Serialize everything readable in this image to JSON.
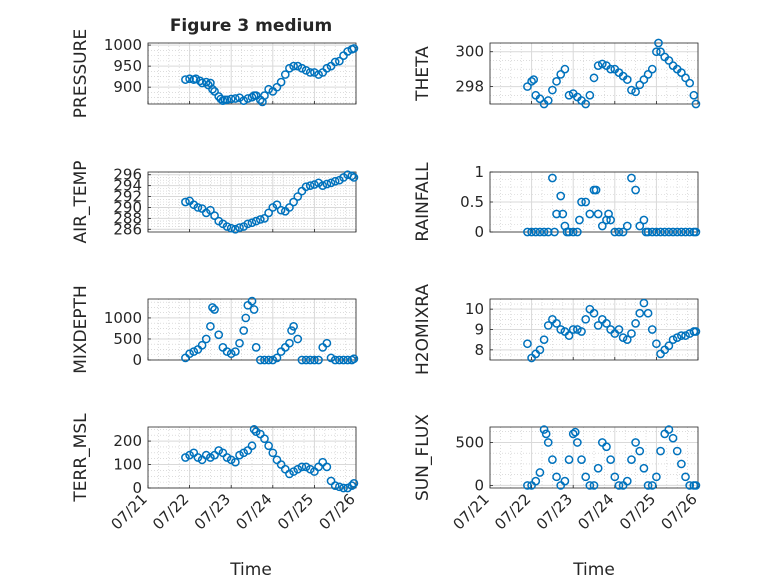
{
  "title": "Figure 3 medium",
  "xlabel": "Time",
  "colors": {
    "marker": "#0072bd",
    "axis": "#262626",
    "grid": "#d9d9d9"
  },
  "chart_data": [
    {
      "type": "scatter",
      "panel": "left-row-1",
      "title": "Figure 3 medium",
      "ylabel": "PRESSURE",
      "ylim": [
        860,
        1005
      ],
      "yticks": [
        900,
        950,
        1000
      ],
      "xlim": [
        "07/21",
        "07/26"
      ],
      "xticks": [
        "07/21",
        "07/22",
        "07/23",
        "07/24",
        "07/25",
        "07/26"
      ],
      "x_days": [
        21.9,
        22.0,
        22.1,
        22.15,
        22.25,
        22.3,
        22.4,
        22.45,
        22.5,
        22.55,
        22.6,
        22.7,
        22.75,
        22.8,
        22.85,
        22.9,
        23.0,
        23.1,
        23.2,
        23.3,
        23.4,
        23.5,
        23.55,
        23.6,
        23.7,
        23.75,
        23.8,
        23.9,
        24.0,
        24.1,
        24.2,
        24.3,
        24.4,
        24.5,
        24.6,
        24.7,
        24.8,
        24.9,
        25.0,
        25.1,
        25.2,
        25.3,
        25.4,
        25.5,
        25.6,
        25.7,
        25.8,
        25.9,
        25.95
      ],
      "values": [
        918,
        920,
        918,
        920,
        915,
        910,
        912,
        905,
        910,
        895,
        890,
        878,
        872,
        868,
        870,
        870,
        872,
        873,
        875,
        868,
        873,
        876,
        880,
        880,
        870,
        865,
        880,
        895,
        890,
        900,
        912,
        930,
        945,
        950,
        950,
        945,
        940,
        935,
        935,
        930,
        935,
        945,
        950,
        960,
        962,
        975,
        985,
        990,
        992
      ]
    },
    {
      "type": "scatter",
      "panel": "right-row-1",
      "ylabel": "THETA",
      "ylim": [
        297,
        300.5
      ],
      "yticks": [
        298,
        300
      ],
      "xlim": [
        "07/21",
        "07/26"
      ],
      "xticks": [
        "07/21",
        "07/22",
        "07/23",
        "07/24",
        "07/25",
        "07/26"
      ],
      "x_days": [
        21.9,
        22.0,
        22.05,
        22.1,
        22.2,
        22.3,
        22.4,
        22.5,
        22.6,
        22.7,
        22.8,
        22.9,
        23.0,
        23.1,
        23.2,
        23.3,
        23.4,
        23.5,
        23.6,
        23.7,
        23.8,
        23.9,
        24.0,
        24.1,
        24.2,
        24.3,
        24.4,
        24.5,
        24.6,
        24.7,
        24.8,
        24.9,
        25.0,
        25.05,
        25.1,
        25.2,
        25.3,
        25.4,
        25.5,
        25.6,
        25.7,
        25.8,
        25.9,
        25.95
      ],
      "values": [
        298.0,
        298.3,
        298.4,
        297.5,
        297.3,
        297.0,
        297.2,
        297.8,
        298.3,
        298.7,
        299.0,
        297.5,
        297.6,
        297.4,
        297.2,
        297.0,
        297.5,
        298.5,
        299.2,
        299.3,
        299.2,
        299.0,
        299.0,
        298.8,
        298.6,
        298.4,
        297.8,
        297.7,
        298.1,
        298.4,
        298.7,
        299.0,
        300.0,
        300.5,
        300.0,
        299.7,
        299.5,
        299.2,
        299.0,
        298.8,
        298.5,
        298.2,
        297.5,
        297.0
      ]
    },
    {
      "type": "scatter",
      "panel": "left-row-2",
      "ylabel": "AIR_TEMP",
      "ylim": [
        285.5,
        296.5
      ],
      "yticks": [
        286,
        288,
        290,
        292,
        294,
        296
      ],
      "xlim": [
        "07/21",
        "07/26"
      ],
      "xticks": [
        "07/21",
        "07/22",
        "07/23",
        "07/24",
        "07/25",
        "07/26"
      ],
      "x_days": [
        21.9,
        22.0,
        22.1,
        22.2,
        22.3,
        22.4,
        22.5,
        22.6,
        22.7,
        22.8,
        22.9,
        23.0,
        23.1,
        23.2,
        23.3,
        23.4,
        23.5,
        23.6,
        23.7,
        23.8,
        23.9,
        24.0,
        24.1,
        24.2,
        24.3,
        24.4,
        24.5,
        24.6,
        24.7,
        24.8,
        24.9,
        25.0,
        25.1,
        25.2,
        25.3,
        25.4,
        25.5,
        25.6,
        25.7,
        25.8,
        25.9,
        25.95
      ],
      "values": [
        291.0,
        291.2,
        290.5,
        290.0,
        289.8,
        289.0,
        289.5,
        288.5,
        287.5,
        287.0,
        286.5,
        286.2,
        286.0,
        286.3,
        286.5,
        287.0,
        287.2,
        287.5,
        287.8,
        288.0,
        289.0,
        290.0,
        290.5,
        289.5,
        289.3,
        290.0,
        291.0,
        292.0,
        293.0,
        293.8,
        294.0,
        294.2,
        294.5,
        294.0,
        294.3,
        294.5,
        294.8,
        295.0,
        295.5,
        296.0,
        295.8,
        295.5
      ]
    },
    {
      "type": "scatter",
      "panel": "right-row-2",
      "ylabel": "RAINFALL",
      "ylim": [
        0,
        1
      ],
      "yticks": [
        0,
        0.5,
        1
      ],
      "xlim": [
        "07/21",
        "07/26"
      ],
      "xticks": [
        "07/21",
        "07/22",
        "07/23",
        "07/24",
        "07/25",
        "07/26"
      ],
      "x_days": [
        21.9,
        22.0,
        22.1,
        22.2,
        22.3,
        22.4,
        22.5,
        22.55,
        22.6,
        22.7,
        22.75,
        22.8,
        22.85,
        22.9,
        23.0,
        23.1,
        23.15,
        23.2,
        23.3,
        23.4,
        23.5,
        23.55,
        23.6,
        23.7,
        23.8,
        23.85,
        23.9,
        24.0,
        24.1,
        24.2,
        24.3,
        24.4,
        24.5,
        24.6,
        24.7,
        24.75,
        24.8,
        24.9,
        25.0,
        25.1,
        25.2,
        25.3,
        25.4,
        25.5,
        25.6,
        25.7,
        25.8,
        25.9,
        25.95
      ],
      "values": [
        0,
        0,
        0,
        0,
        0,
        0,
        0.9,
        0,
        0.3,
        0.6,
        0.3,
        0.1,
        0,
        0,
        0,
        0,
        0.2,
        0.5,
        0.5,
        0.3,
        0.7,
        0.7,
        0.3,
        0.1,
        0.2,
        0.3,
        0.2,
        0,
        0,
        0,
        0.1,
        0.9,
        0.7,
        0.1,
        0.2,
        0,
        0,
        0,
        0,
        0,
        0,
        0,
        0,
        0,
        0,
        0,
        0,
        0,
        0
      ]
    },
    {
      "type": "scatter",
      "panel": "left-row-3",
      "ylabel": "MIXDEPTH",
      "ylim": [
        0,
        1450
      ],
      "yticks": [
        0,
        500,
        1000
      ],
      "xlim": [
        "07/21",
        "07/26"
      ],
      "xticks": [
        "07/21",
        "07/22",
        "07/23",
        "07/24",
        "07/25",
        "07/26"
      ],
      "x_days": [
        21.9,
        22.0,
        22.1,
        22.2,
        22.3,
        22.4,
        22.5,
        22.55,
        22.6,
        22.7,
        22.8,
        22.9,
        23.0,
        23.1,
        23.2,
        23.3,
        23.35,
        23.4,
        23.5,
        23.55,
        23.6,
        23.7,
        23.8,
        23.9,
        24.0,
        24.1,
        24.2,
        24.3,
        24.4,
        24.45,
        24.5,
        24.6,
        24.7,
        24.8,
        24.9,
        25.0,
        25.1,
        25.2,
        25.3,
        25.4,
        25.5,
        25.6,
        25.7,
        25.8,
        25.9,
        25.95
      ],
      "values": [
        50,
        150,
        200,
        250,
        350,
        500,
        800,
        1250,
        1200,
        600,
        300,
        200,
        150,
        200,
        400,
        700,
        1000,
        1300,
        1400,
        1200,
        300,
        0,
        0,
        0,
        0,
        50,
        200,
        300,
        400,
        700,
        800,
        500,
        0,
        0,
        0,
        0,
        0,
        300,
        400,
        50,
        0,
        0,
        0,
        0,
        0,
        30
      ]
    },
    {
      "type": "scatter",
      "panel": "right-row-3",
      "ylabel": "H2OMIXRA",
      "ylim": [
        7.5,
        10.5
      ],
      "yticks": [
        8,
        9,
        10
      ],
      "xlim": [
        "07/21",
        "07/26"
      ],
      "xticks": [
        "07/21",
        "07/22",
        "07/23",
        "07/24",
        "07/25",
        "07/26"
      ],
      "x_days": [
        21.9,
        22.0,
        22.1,
        22.2,
        22.3,
        22.4,
        22.5,
        22.6,
        22.7,
        22.8,
        22.9,
        23.0,
        23.1,
        23.2,
        23.3,
        23.4,
        23.5,
        23.6,
        23.7,
        23.8,
        23.9,
        24.0,
        24.1,
        24.2,
        24.3,
        24.4,
        24.5,
        24.6,
        24.7,
        24.8,
        24.9,
        25.0,
        25.1,
        25.2,
        25.3,
        25.4,
        25.5,
        25.6,
        25.7,
        25.8,
        25.9,
        25.95
      ],
      "values": [
        8.3,
        7.6,
        7.8,
        8.0,
        8.5,
        9.2,
        9.5,
        9.3,
        9.0,
        8.9,
        8.7,
        9.0,
        9.0,
        8.9,
        9.5,
        10.0,
        9.8,
        9.2,
        9.5,
        9.3,
        9.0,
        8.8,
        9.0,
        8.6,
        8.5,
        8.8,
        9.3,
        9.8,
        10.3,
        9.8,
        9.0,
        8.3,
        7.8,
        8.0,
        8.2,
        8.5,
        8.6,
        8.7,
        8.7,
        8.8,
        8.9,
        8.9
      ]
    },
    {
      "type": "scatter",
      "panel": "left-row-4",
      "ylabel": "TERR_MSL",
      "ylim": [
        0,
        260
      ],
      "yticks": [
        0,
        100,
        200
      ],
      "xlim": [
        "07/21",
        "07/26"
      ],
      "xticks": [
        "07/21",
        "07/22",
        "07/23",
        "07/24",
        "07/25",
        "07/26"
      ],
      "x_days": [
        21.9,
        22.0,
        22.1,
        22.2,
        22.3,
        22.4,
        22.5,
        22.6,
        22.7,
        22.8,
        22.9,
        23.0,
        23.1,
        23.2,
        23.3,
        23.4,
        23.5,
        23.55,
        23.6,
        23.7,
        23.8,
        23.9,
        24.0,
        24.1,
        24.2,
        24.3,
        24.4,
        24.5,
        24.6,
        24.7,
        24.8,
        24.9,
        25.0,
        25.1,
        25.2,
        25.3,
        25.4,
        25.5,
        25.6,
        25.7,
        25.8,
        25.9,
        25.95
      ],
      "values": [
        130,
        140,
        150,
        130,
        120,
        140,
        130,
        140,
        160,
        150,
        130,
        120,
        110,
        140,
        150,
        160,
        180,
        250,
        240,
        230,
        210,
        180,
        150,
        120,
        100,
        80,
        60,
        70,
        80,
        90,
        90,
        80,
        70,
        90,
        110,
        90,
        30,
        10,
        5,
        0,
        0,
        10,
        20
      ]
    },
    {
      "type": "scatter",
      "panel": "right-row-4",
      "ylabel": "SUN_FLUX",
      "ylim": [
        -30,
        680
      ],
      "yticks": [
        0,
        500
      ],
      "xlim": [
        "07/21",
        "07/26"
      ],
      "xticks": [
        "07/21",
        "07/22",
        "07/23",
        "07/24",
        "07/25",
        "07/26"
      ],
      "x_days": [
        21.9,
        22.0,
        22.1,
        22.2,
        22.3,
        22.35,
        22.4,
        22.5,
        22.6,
        22.7,
        22.8,
        22.9,
        23.0,
        23.05,
        23.1,
        23.2,
        23.3,
        23.4,
        23.5,
        23.6,
        23.7,
        23.8,
        23.9,
        24.0,
        24.1,
        24.2,
        24.3,
        24.4,
        24.5,
        24.6,
        24.7,
        24.8,
        24.9,
        25.0,
        25.1,
        25.2,
        25.3,
        25.4,
        25.5,
        25.6,
        25.7,
        25.8,
        25.9,
        25.95
      ],
      "values": [
        0,
        0,
        50,
        150,
        650,
        600,
        500,
        300,
        100,
        0,
        50,
        300,
        600,
        620,
        500,
        300,
        100,
        0,
        0,
        200,
        500,
        450,
        300,
        100,
        0,
        0,
        50,
        300,
        500,
        400,
        200,
        0,
        0,
        100,
        400,
        600,
        650,
        550,
        400,
        250,
        100,
        0,
        0,
        0
      ]
    }
  ]
}
